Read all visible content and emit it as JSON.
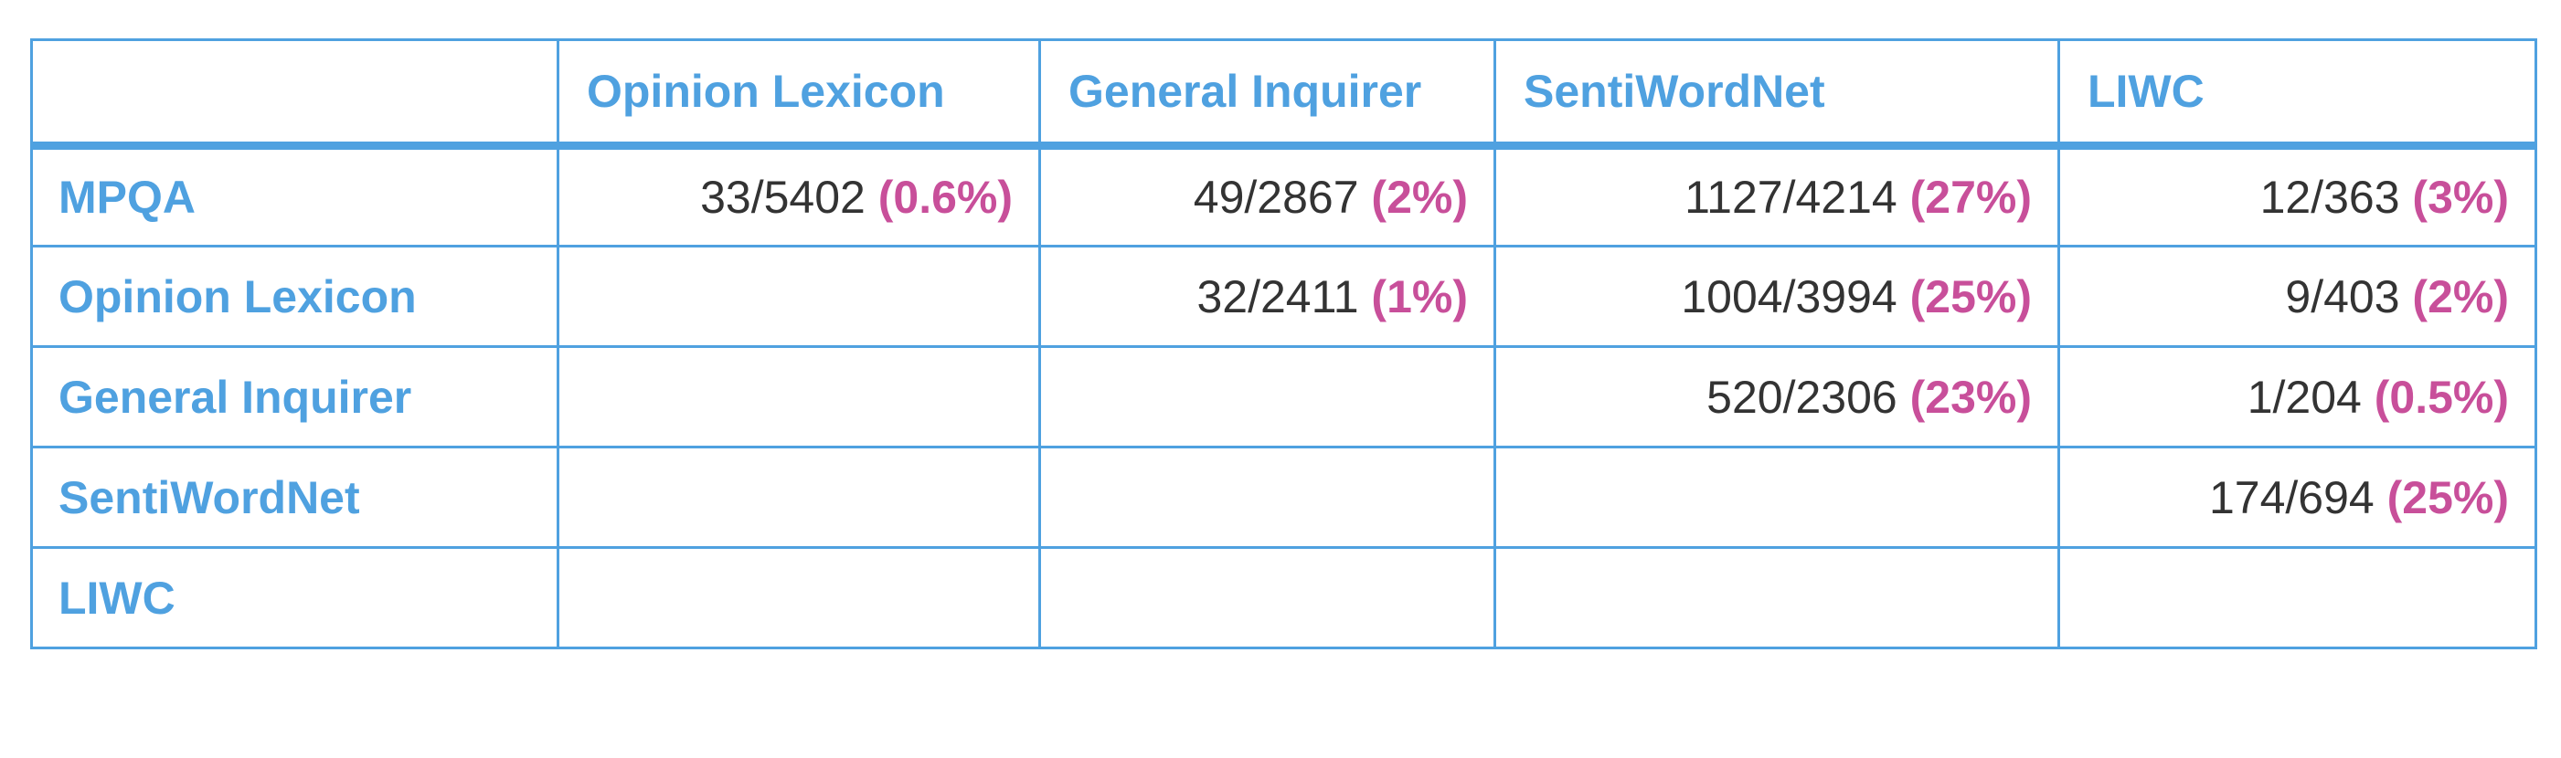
{
  "table": {
    "columns": [
      "",
      "Opinion Lexicon",
      "General Inquirer",
      "SentiWordNet",
      "LIWC"
    ],
    "rows": [
      {
        "label": "MPQA",
        "cells": [
          {
            "count": "33/5402",
            "pct": "(0.6%)"
          },
          {
            "count": "49/2867",
            "pct": "(2%)"
          },
          {
            "count": "1127/4214",
            "pct": "(27%)"
          },
          {
            "count": "12/363",
            "pct": "(3%)"
          }
        ]
      },
      {
        "label": "Opinion Lexicon",
        "cells": [
          {
            "count": "",
            "pct": ""
          },
          {
            "count": "32/2411",
            "pct": "(1%)"
          },
          {
            "count": "1004/3994",
            "pct": "(25%)"
          },
          {
            "count": "9/403",
            "pct": "(2%)"
          }
        ]
      },
      {
        "label": "General Inquirer",
        "cells": [
          {
            "count": "",
            "pct": ""
          },
          {
            "count": "",
            "pct": ""
          },
          {
            "count": "520/2306",
            "pct": "(23%)"
          },
          {
            "count": "1/204",
            "pct": "(0.5%)"
          }
        ]
      },
      {
        "label": "SentiWordNet",
        "cells": [
          {
            "count": "",
            "pct": ""
          },
          {
            "count": "",
            "pct": ""
          },
          {
            "count": "",
            "pct": ""
          },
          {
            "count": "174/694",
            "pct": "(25%)"
          }
        ]
      },
      {
        "label": "LIWC",
        "cells": [
          {
            "count": "",
            "pct": ""
          },
          {
            "count": "",
            "pct": ""
          },
          {
            "count": "",
            "pct": ""
          },
          {
            "count": "",
            "pct": ""
          }
        ]
      }
    ]
  },
  "colors": {
    "border": "#4fa1e0",
    "header_text": "#4fa1e0",
    "value_text": "#333333",
    "percent_text": "#c84f9a"
  }
}
